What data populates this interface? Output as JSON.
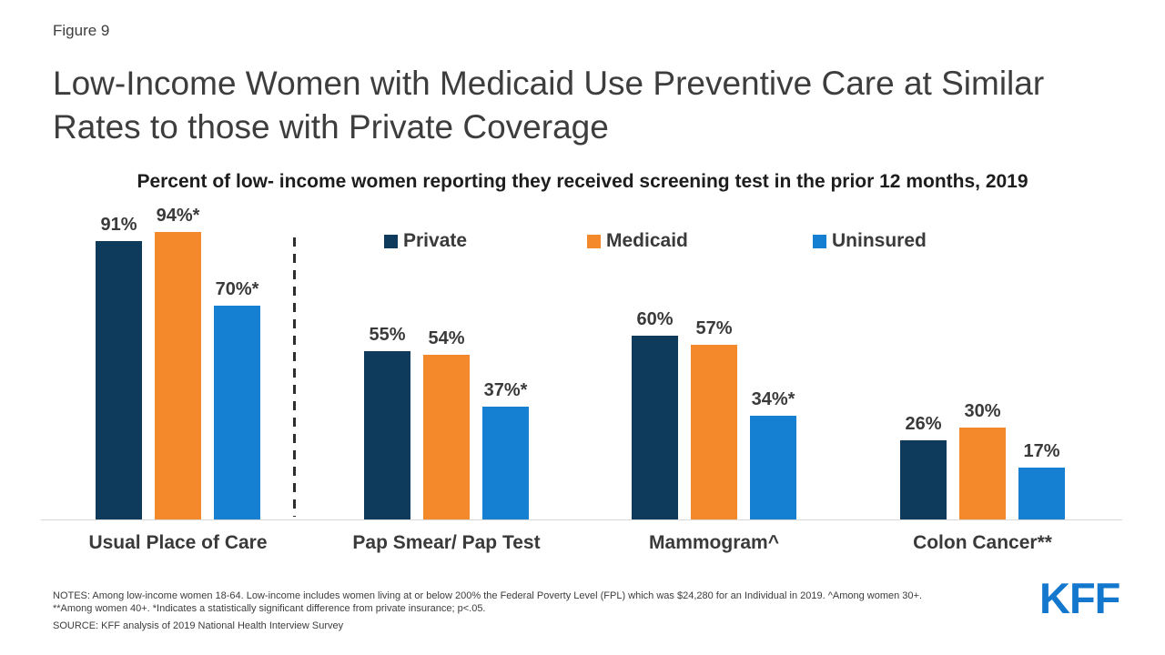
{
  "figure_label": "Figure 9",
  "title": "Low-Income Women with Medicaid Use Preventive Care at Similar Rates to those with Private Coverage",
  "subtitle": "Percent of low- income women reporting they received screening test in the prior 12 months, 2019",
  "chart_data": {
    "type": "bar",
    "categories": [
      "Usual Place of Care",
      "Pap Smear/ Pap Test",
      "Mammogram^",
      "Colon Cancer**"
    ],
    "series": [
      {
        "name": "Private",
        "color": "#0e3a5c",
        "values": [
          91,
          55,
          60,
          26
        ],
        "value_labels": [
          "91%",
          "55%",
          "60%",
          "26%"
        ]
      },
      {
        "name": "Medicaid",
        "color": "#f3892b",
        "values": [
          94,
          54,
          57,
          30
        ],
        "value_labels": [
          "94%*",
          "54%",
          "57%",
          "30%"
        ]
      },
      {
        "name": "Uninsured",
        "color": "#1580d2",
        "values": [
          70,
          37,
          34,
          17
        ],
        "value_labels": [
          "70%*",
          "37%*",
          "34%*",
          "17%"
        ]
      }
    ],
    "ylim": [
      0,
      100
    ],
    "grid": false,
    "axis_shown": "x-baseline only, no y-axis ticks",
    "legend_position": "inside plot, top center row",
    "separator_note": "vertical dashed line between first category and the rest"
  },
  "notes": {
    "line1": "NOTES: Among low-income women 18-64. Low-income includes women living at or below 200% the Federal Poverty Level (FPL) which was $24,280 for an Individual in 2019.  ^Among women 30+.",
    "line2": "**Among women 40+. *Indicates a statistically significant difference from private insurance; p<.05.",
    "source": "SOURCE: KFF analysis of 2019 National Health Interview Survey"
  },
  "logo_text": "KFF",
  "colors": {
    "private": "#0e3a5c",
    "medicaid": "#f3892b",
    "uninsured": "#1580d2",
    "kff_blue": "#1377ce",
    "title_text": "#3d3d3d",
    "baseline": "#d9d9d9",
    "dashed_line": "#2e2e2e",
    "background": "#ffffff"
  }
}
